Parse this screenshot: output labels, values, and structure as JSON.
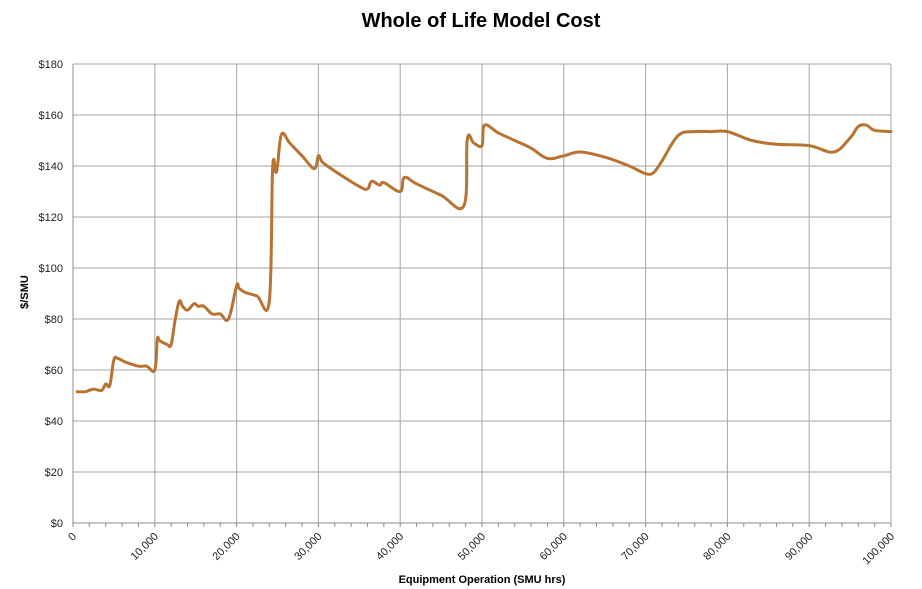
{
  "chart_data": {
    "type": "line",
    "title": "Whole of Life Model Cost",
    "xlabel": "Equipment Operation (SMU hrs)",
    "ylabel": "$/SMU",
    "xlim": [
      0,
      100000
    ],
    "ylim": [
      0,
      180
    ],
    "x_ticks": [
      0,
      10000,
      20000,
      30000,
      40000,
      50000,
      60000,
      70000,
      80000,
      90000,
      100000
    ],
    "x_tick_labels": [
      "0",
      "10,000",
      "20,000",
      "30,000",
      "40,000",
      "50,000",
      "60,000",
      "70,000",
      "80,000",
      "90,000",
      "100,000"
    ],
    "y_ticks": [
      0,
      20,
      40,
      60,
      80,
      100,
      120,
      140,
      160,
      180
    ],
    "y_tick_labels": [
      "$0",
      "$20",
      "$40",
      "$60",
      "$80",
      "$100",
      "$120",
      "$140",
      "$160",
      "$180"
    ],
    "grid": true,
    "line_color": "#b87333",
    "series": [
      {
        "x": [
          500,
          1500,
          2500,
          3500,
          4000,
          4500,
          5000,
          5500,
          6500,
          8000,
          9000,
          10000,
          10300,
          10600,
          11500,
          12000,
          12500,
          13000,
          13400,
          14000,
          14800,
          15300,
          16000,
          17000,
          18000,
          19000,
          20000,
          20300,
          21000,
          22500,
          24000,
          24400,
          24800,
          25000,
          25500,
          26500,
          28000,
          29500,
          30000,
          30500,
          32000,
          35000,
          36000,
          36500,
          37500,
          38000,
          40000,
          40500,
          42000,
          45000,
          47800,
          48200,
          49000,
          50000,
          50300,
          52000,
          54000,
          56000,
          58000,
          60000,
          62000,
          65000,
          68000,
          70000,
          71000,
          72000,
          74000,
          76000,
          78000,
          80000,
          83000,
          86000,
          90000,
          93000,
          95000,
          96000,
          97000,
          98000,
          100000
        ],
        "values": [
          51.5,
          51.5,
          52.5,
          52,
          54.5,
          54,
          64,
          64.5,
          63,
          61.5,
          61.5,
          60,
          72,
          71.5,
          70,
          70,
          80,
          87,
          85,
          83.5,
          86,
          85,
          85,
          82,
          82,
          80,
          93,
          92,
          90.5,
          89,
          87,
          139,
          137.5,
          140,
          152.5,
          149,
          144,
          139,
          144,
          141.5,
          138,
          132,
          131,
          134,
          132.5,
          133.5,
          130,
          135.5,
          133,
          128.5,
          124.5,
          150.5,
          149,
          148,
          156,
          153,
          150,
          147,
          143,
          144,
          145.5,
          143.5,
          140,
          137,
          137.5,
          142,
          152,
          153.5,
          153.5,
          153.5,
          150,
          148.5,
          148,
          145.5,
          151,
          155.5,
          156,
          154,
          153.5
        ]
      }
    ]
  }
}
